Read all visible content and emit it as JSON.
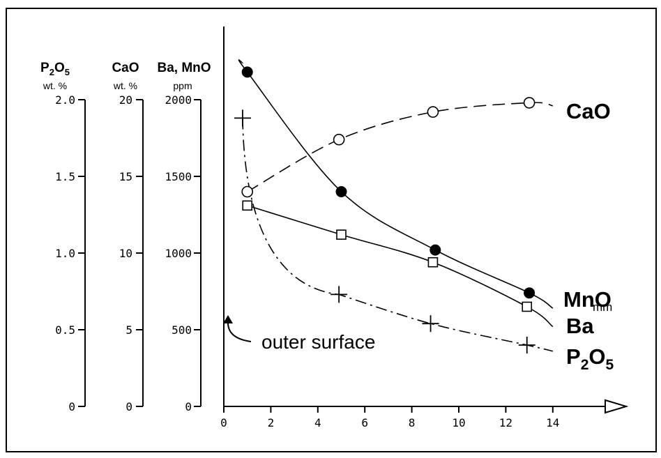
{
  "chart_data": {
    "type": "line",
    "x_axis": {
      "range": [
        0,
        15
      ],
      "ticks": [
        0,
        2,
        4,
        6,
        8,
        10,
        12,
        14
      ],
      "tick_labels": [
        "0",
        "2",
        "4",
        "6",
        "8",
        "10",
        "12",
        "14"
      ],
      "unit": "mm"
    },
    "y_axes": [
      {
        "id": "p2o5",
        "title_main": "P",
        "title_sub1": "2",
        "title_mid": "O",
        "title_sub2": "5",
        "unit": "wt. %",
        "range": [
          0,
          2.0
        ],
        "ticks": [
          0,
          0.5,
          1.0,
          1.5,
          2.0
        ],
        "tick_labels": [
          "0",
          "0.5",
          "1.0",
          "1.5",
          "2.0"
        ]
      },
      {
        "id": "cao",
        "title": "CaO",
        "unit": "wt. %",
        "range": [
          0,
          20
        ],
        "ticks": [
          0,
          5,
          10,
          15,
          20
        ],
        "tick_labels": [
          "0",
          "5",
          "10",
          "15",
          "20"
        ]
      },
      {
        "id": "bamno",
        "title": "Ba, MnO",
        "unit": "ppm",
        "range": [
          0,
          2000
        ],
        "ticks": [
          0,
          500,
          1000,
          1500,
          2000
        ],
        "tick_labels": [
          "0",
          "500",
          "1000",
          "1500",
          "2000"
        ]
      }
    ],
    "series": [
      {
        "name": "CaO",
        "axis": "cao",
        "marker": "open-circle",
        "line": "dashed",
        "x": [
          1.0,
          4.9,
          8.9,
          13.0
        ],
        "y": [
          14.0,
          17.4,
          19.2,
          19.8
        ]
      },
      {
        "name": "MnO",
        "axis": "bamno",
        "marker": "filled-circle",
        "line": "solid",
        "x": [
          1.0,
          5.0,
          9.0,
          13.0
        ],
        "y": [
          2180,
          1400,
          1020,
          740
        ]
      },
      {
        "name": "Ba",
        "axis": "bamno",
        "marker": "open-square",
        "line": "solid",
        "x": [
          1.0,
          5.0,
          8.9,
          12.9
        ],
        "y": [
          1310,
          1120,
          940,
          650
        ]
      },
      {
        "name": "P2O5",
        "name_main": "P",
        "name_sub1": "2",
        "name_mid": "O",
        "name_sub2": "5",
        "axis": "p2o5",
        "marker": "plus",
        "line": "dash-dot",
        "x": [
          0.8,
          4.9,
          8.8,
          12.9
        ],
        "y": [
          1.88,
          0.73,
          0.54,
          0.4
        ]
      }
    ],
    "annotation": "outer surface",
    "grid": false
  }
}
